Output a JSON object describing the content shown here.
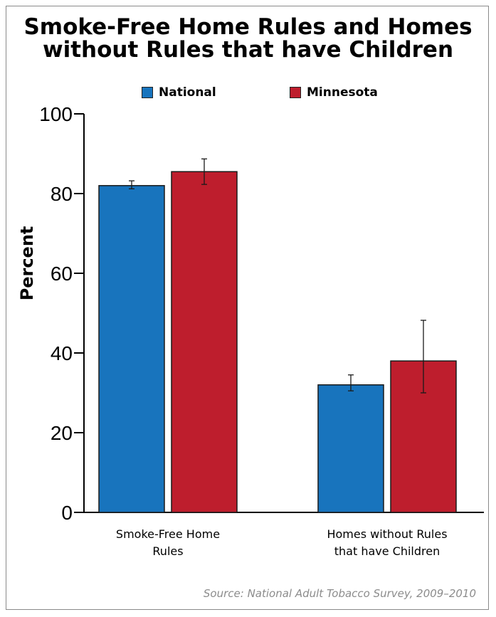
{
  "title_lines": [
    "Smoke-Free Home Rules and Homes",
    "without Rules that have Children"
  ],
  "source": "Source: National Adult Tobacco Survey, 2009–2010",
  "colors": {
    "National": "#1874bd",
    "Minnesota": "#be1e2d"
  },
  "chart_data": {
    "type": "bar",
    "title": "Smoke-Free Home Rules and Homes without Rules that have Children",
    "ylabel": "Percent",
    "xlabel": "",
    "ylim": [
      0,
      100
    ],
    "yticks": [
      0,
      20,
      40,
      60,
      80,
      100
    ],
    "legend_position": "top",
    "grid": false,
    "categories": [
      [
        "Smoke-Free Home",
        "Rules"
      ],
      [
        "Homes without Rules",
        "that have Children"
      ]
    ],
    "series": [
      {
        "name": "National",
        "values": [
          82,
          32
        ],
        "error_low": [
          81.2,
          30.5
        ],
        "error_high": [
          83.2,
          34.5
        ]
      },
      {
        "name": "Minnesota",
        "values": [
          85.5,
          38
        ],
        "error_low": [
          82.3,
          30
        ],
        "error_high": [
          88.7,
          48.2
        ]
      }
    ]
  }
}
